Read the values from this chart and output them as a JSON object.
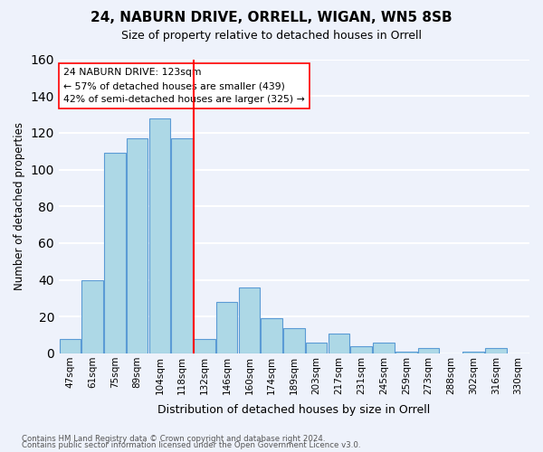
{
  "title": "24, NABURN DRIVE, ORRELL, WIGAN, WN5 8SB",
  "subtitle": "Size of property relative to detached houses in Orrell",
  "xlabel": "Distribution of detached houses by size in Orrell",
  "ylabel": "Number of detached properties",
  "categories": [
    "47sqm",
    "61sqm",
    "75sqm",
    "89sqm",
    "104sqm",
    "118sqm",
    "132sqm",
    "146sqm",
    "160sqm",
    "174sqm",
    "189sqm",
    "203sqm",
    "217sqm",
    "231sqm",
    "245sqm",
    "259sqm",
    "273sqm",
    "288sqm",
    "302sqm",
    "316sqm",
    "330sqm"
  ],
  "values": [
    8,
    40,
    109,
    117,
    128,
    117,
    8,
    28,
    36,
    19,
    14,
    6,
    11,
    4,
    6,
    1,
    3,
    0,
    1,
    3,
    0
  ],
  "bar_color": "#add8e6",
  "bar_edge_color": "#5b9bd5",
  "vline_x_index": 5,
  "vline_color": "red",
  "annotation_text": "24 NABURN DRIVE: 123sqm\n← 57% of detached houses are smaller (439)\n42% of semi-detached houses are larger (325) →",
  "annotation_box_color": "white",
  "annotation_box_edge_color": "red",
  "ylim": [
    0,
    160
  ],
  "yticks": [
    0,
    20,
    40,
    60,
    80,
    100,
    120,
    140,
    160
  ],
  "footer_line1": "Contains HM Land Registry data © Crown copyright and database right 2024.",
  "footer_line2": "Contains public sector information licensed under the Open Government Licence v3.0.",
  "background_color": "#eef2fb",
  "grid_color": "white"
}
